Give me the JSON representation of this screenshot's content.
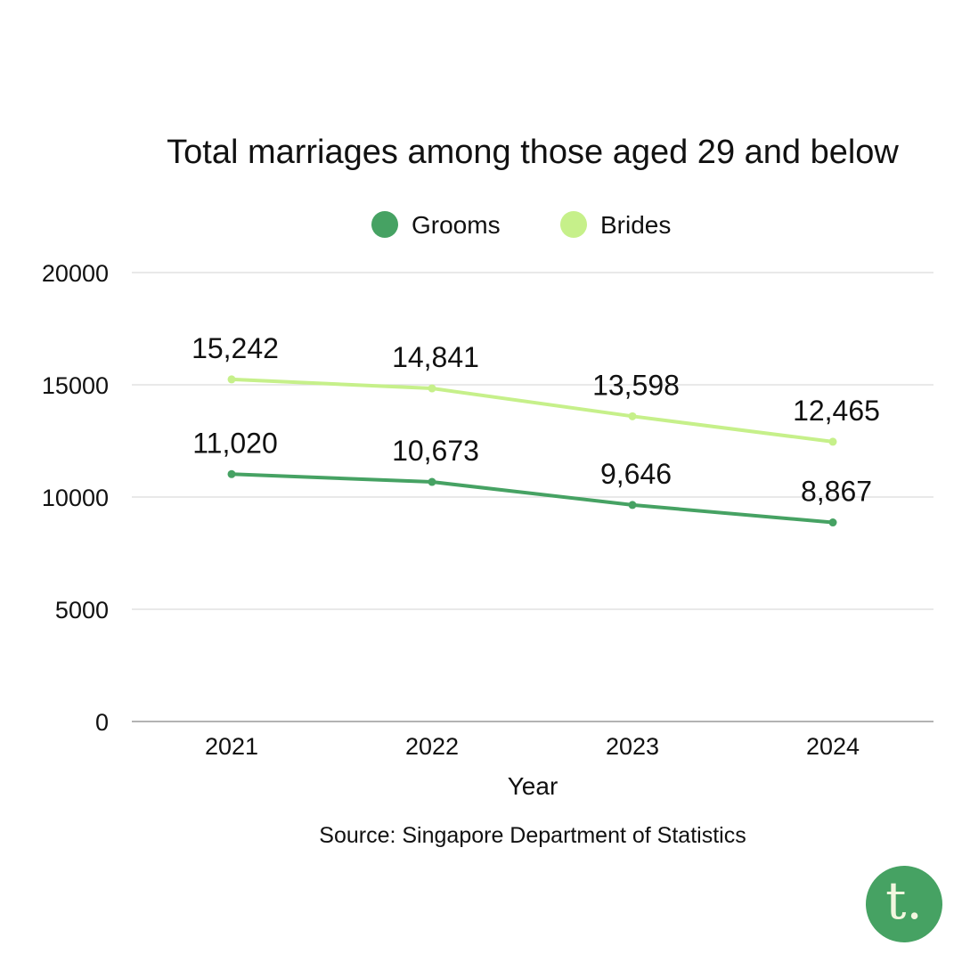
{
  "chart_data": {
    "type": "line",
    "title": "Total marriages among those aged 29 and below",
    "xlabel": "Year",
    "ylabel": "",
    "categories": [
      "2021",
      "2022",
      "2023",
      "2024"
    ],
    "ylim": [
      0,
      20000
    ],
    "yticks": [
      0,
      5000,
      10000,
      15000,
      20000
    ],
    "grid": true,
    "legend_position": "top-center",
    "series": [
      {
        "name": "Grooms",
        "color": "#46a263",
        "values": [
          11020,
          10673,
          9646,
          8867
        ],
        "labels": [
          "11,020",
          "10,673",
          "9,646",
          "8,867"
        ]
      },
      {
        "name": "Brides",
        "color": "#c6f08a",
        "values": [
          15242,
          14841,
          13598,
          12465
        ],
        "labels": [
          "15,242",
          "14,841",
          "13,598",
          "12,465"
        ]
      }
    ]
  },
  "source": "Source: Singapore Department of Statistics",
  "logo": {
    "letter": "t.",
    "color": "#46a263"
  }
}
